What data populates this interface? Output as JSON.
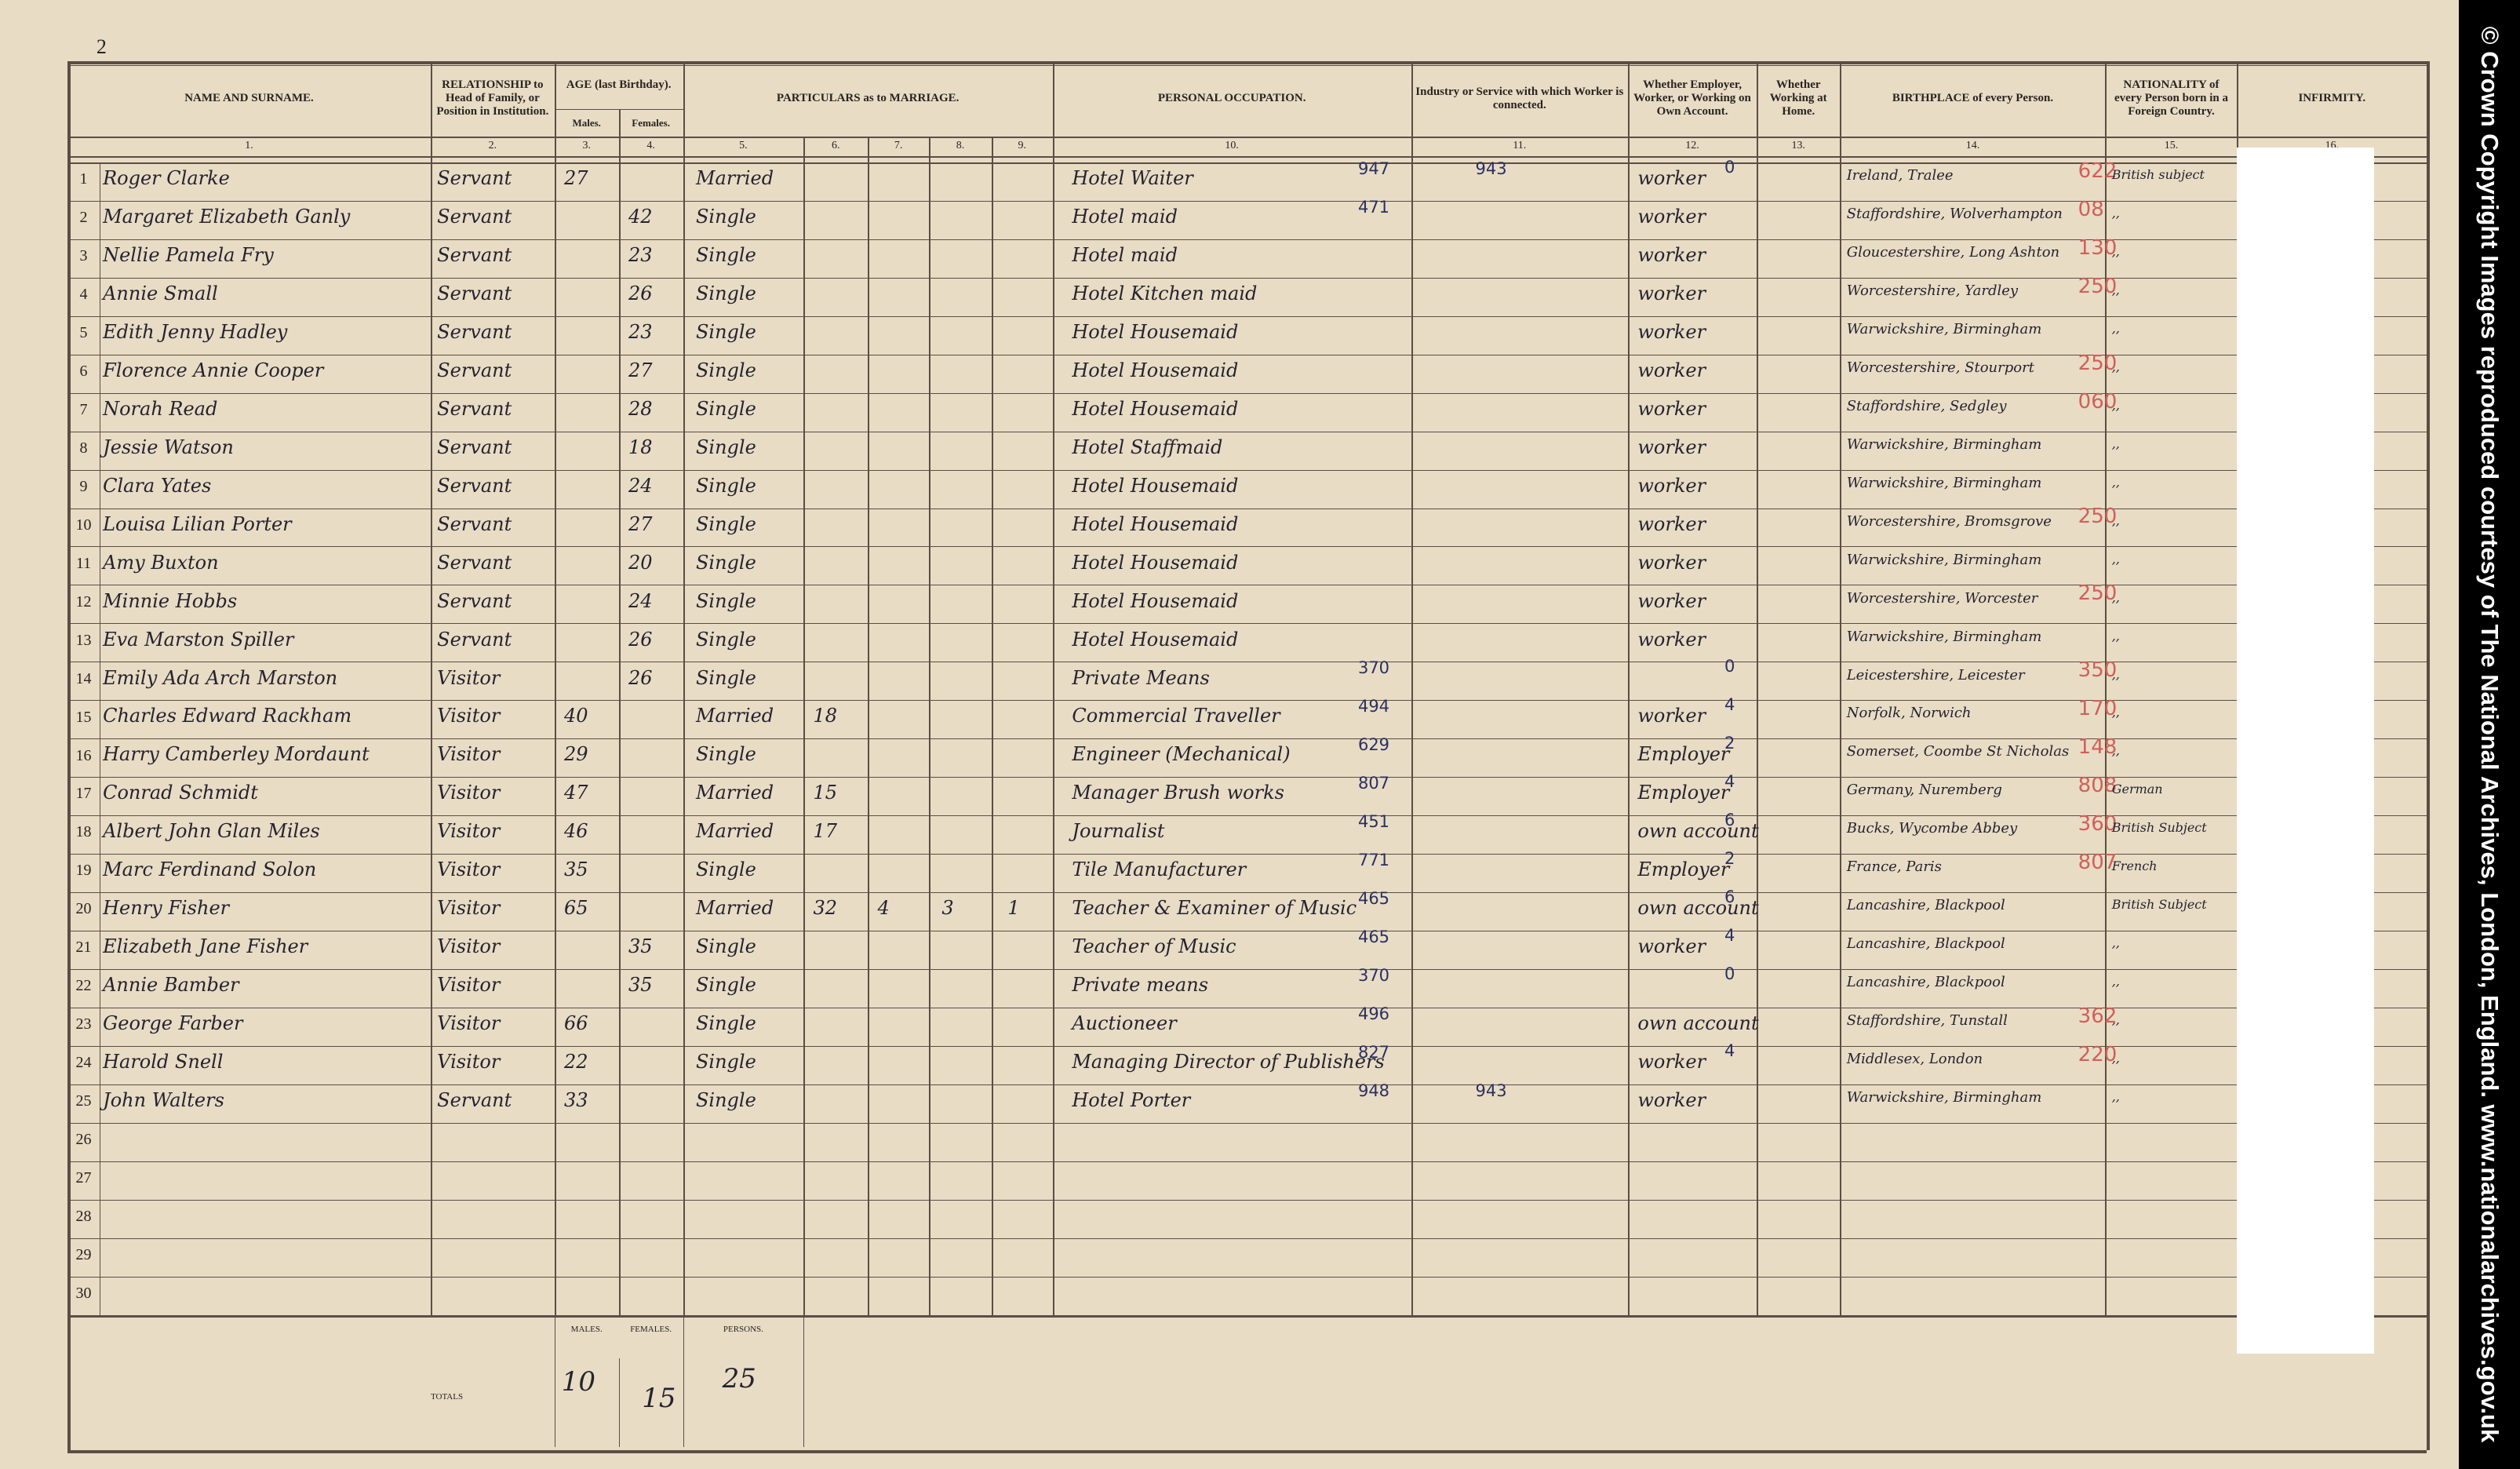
{
  "page_number": "2",
  "header": {
    "name": "NAME AND SURNAME.",
    "relationship": "RELATIONSHIP to Head of Family, or Position in Institution.",
    "age": "AGE (last Birthday).",
    "males": "Males.",
    "females": "Females.",
    "marriage": "PARTICULARS as to MARRIAGE.",
    "occupation": "PERSONAL OCCUPATION.",
    "industry": "Industry or Service with which Worker is connected.",
    "employment": "Whether Employer, Worker, or Working on Own Account.",
    "at_home": "Whether Working at Home.",
    "birthplace": "BIRTHPLACE of every Person.",
    "nationality": "NATIONALITY of every Person born in a Foreign Country.",
    "infirmity": "INFIRMITY."
  },
  "column_numbers": [
    "1.",
    "2.",
    "3.",
    "4.",
    "5.",
    "6.",
    "7.",
    "8.",
    "9.",
    "10.",
    "11.",
    "12.",
    "13.",
    "14.",
    "15.",
    "16."
  ],
  "rows": [
    {
      "number": "1",
      "name": "Roger Clarke",
      "relationship": "Servant",
      "males": "27",
      "marriage": "Married",
      "occupation": "Hotel Waiter",
      "occupation_code": "947",
      "industry": "943",
      "employment": "worker",
      "employment_code": "0",
      "birthplace": "Ireland, Tralee",
      "birthplace_code": "622",
      "nationality": "British subject"
    },
    {
      "number": "2",
      "name": "Margaret Elizabeth Ganly",
      "relationship": "Servant",
      "females": "42",
      "marriage": "Single",
      "occupation": "Hotel maid",
      "occupation_code": "471",
      "employment": "worker",
      "birthplace": "Staffordshire, Wolverhampton",
      "birthplace_code": "08",
      "nationality": ",,"
    },
    {
      "number": "3",
      "name": "Nellie Pamela Fry",
      "relationship": "Servant",
      "females": "23",
      "marriage": "Single",
      "occupation": "Hotel maid",
      "employment": "worker",
      "birthplace": "Gloucestershire, Long Ashton",
      "birthplace_code": "130",
      "nationality": ",,"
    },
    {
      "number": "4",
      "name": "Annie Small",
      "relationship": "Servant",
      "females": "26",
      "marriage": "Single",
      "occupation": "Hotel Kitchen maid",
      "employment": "worker",
      "birthplace": "Worcestershire, Yardley",
      "birthplace_code": "250",
      "nationality": ",,"
    },
    {
      "number": "5",
      "name": "Edith Jenny Hadley",
      "relationship": "Servant",
      "females": "23",
      "marriage": "Single",
      "occupation": "Hotel Housemaid",
      "employment": "worker",
      "birthplace": "Warwickshire, Birmingham",
      "nationality": ",,"
    },
    {
      "number": "6",
      "name": "Florence Annie Cooper",
      "relationship": "Servant",
      "females": "27",
      "marriage": "Single",
      "occupation": "Hotel Housemaid",
      "employment": "worker",
      "birthplace": "Worcestershire, Stourport",
      "birthplace_code": "250",
      "nationality": ",,"
    },
    {
      "number": "7",
      "name": "Norah Read",
      "relationship": "Servant",
      "females": "28",
      "marriage": "Single",
      "occupation": "Hotel Housemaid",
      "employment": "worker",
      "birthplace": "Staffordshire, Sedgley",
      "birthplace_code": "060",
      "nationality": ",,"
    },
    {
      "number": "8",
      "name": "Jessie Watson",
      "relationship": "Servant",
      "females": "18",
      "marriage": "Single",
      "occupation": "Hotel Staffmaid",
      "employment": "worker",
      "birthplace": "Warwickshire, Birmingham",
      "nationality": ",,"
    },
    {
      "number": "9",
      "name": "Clara Yates",
      "relationship": "Servant",
      "females": "24",
      "marriage": "Single",
      "occupation": "Hotel Housemaid",
      "employment": "worker",
      "birthplace": "Warwickshire, Birmingham",
      "nationality": ",,"
    },
    {
      "number": "10",
      "name": "Louisa Lilian Porter",
      "relationship": "Servant",
      "females": "27",
      "marriage": "Single",
      "occupation": "Hotel Housemaid",
      "employment": "worker",
      "birthplace": "Worcestershire, Bromsgrove",
      "birthplace_code": "250",
      "nationality": ",,"
    },
    {
      "number": "11",
      "name": "Amy Buxton",
      "relationship": "Servant",
      "females": "20",
      "marriage": "Single",
      "occupation": "Hotel Housemaid",
      "employment": "worker",
      "birthplace": "Warwickshire, Birmingham",
      "nationality": ",,"
    },
    {
      "number": "12",
      "name": "Minnie Hobbs",
      "relationship": "Servant",
      "females": "24",
      "marriage": "Single",
      "occupation": "Hotel Housemaid",
      "employment": "worker",
      "birthplace": "Worcestershire, Worcester",
      "birthplace_code": "250",
      "nationality": ",,"
    },
    {
      "number": "13",
      "name": "Eva Marston Spiller",
      "relationship": "Servant",
      "females": "26",
      "marriage": "Single",
      "occupation": "Hotel Housemaid",
      "employment": "worker",
      "birthplace": "Warwickshire, Birmingham",
      "nationality": ",,"
    },
    {
      "number": "14",
      "name": "Emily Ada Arch Marston",
      "relationship": "Visitor",
      "females": "26",
      "marriage": "Single",
      "occupation": "Private Means",
      "occupation_code": "370",
      "employment_code": "0",
      "birthplace": "Leicestershire, Leicester",
      "birthplace_code": "350",
      "nationality": ",,"
    },
    {
      "number": "15",
      "name": "Charles Edward Rackham",
      "relationship": "Visitor",
      "males": "40",
      "marriage": "Married",
      "years": "18",
      "occupation": "Commercial Traveller",
      "occupation_code": "494",
      "employment": "worker",
      "employment_code": "4",
      "birthplace": "Norfolk, Norwich",
      "birthplace_code": "170",
      "nationality": ",,"
    },
    {
      "number": "16",
      "name": "Harry Camberley Mordaunt",
      "relationship": "Visitor",
      "males": "29",
      "marriage": "Single",
      "occupation": "Engineer (Mechanical)",
      "occupation_code": "629",
      "employment": "Employer",
      "employment_code": "2",
      "birthplace": "Somerset, Coombe St Nicholas",
      "birthplace_code": "148",
      "nationality": ",,"
    },
    {
      "number": "17",
      "name": "Conrad Schmidt",
      "relationship": "Visitor",
      "males": "47",
      "marriage": "Married",
      "years": "15",
      "occupation": "Manager Brush works",
      "occupation_code": "807",
      "employment": "Employer",
      "employment_code": "4",
      "birthplace": "Germany, Nuremberg",
      "birthplace_code": "808",
      "nationality": "German"
    },
    {
      "number": "18",
      "name": "Albert John Glan Miles",
      "relationship": "Visitor",
      "males": "46",
      "marriage": "Married",
      "years": "17",
      "occupation": "Journalist",
      "occupation_code": "451",
      "employment": "own account",
      "employment_code": "6",
      "birthplace": "Bucks, Wycombe Abbey",
      "birthplace_code": "360",
      "nationality": "British Subject"
    },
    {
      "number": "19",
      "name": "Marc Ferdinand Solon",
      "relationship": "Visitor",
      "males": "35",
      "marriage": "Single",
      "occupation": "Tile Manufacturer",
      "occupation_code": "771",
      "employment": "Employer",
      "employment_code": "2",
      "birthplace": "France, Paris",
      "birthplace_code": "807",
      "nationality": "French"
    },
    {
      "number": "20",
      "name": "Henry Fisher",
      "relationship": "Visitor",
      "males": "65",
      "marriage": "Married",
      "years": "32",
      "born_alive": "4",
      "living": "3",
      "died": "1",
      "occupation": "Teacher & Examiner of Music",
      "occupation_code": "465",
      "employment": "own account",
      "employment_code": "6",
      "birthplace": "Lancashire, Blackpool",
      "nationality": "British Subject"
    },
    {
      "number": "21",
      "name": "Elizabeth Jane Fisher",
      "relationship": "Visitor",
      "females": "35",
      "marriage": "Single",
      "occupation": "Teacher of Music",
      "occupation_code": "465",
      "employment": "worker",
      "employment_code": "4",
      "birthplace": "Lancashire, Blackpool",
      "nationality": ",,"
    },
    {
      "number": "22",
      "name": "Annie Bamber",
      "relationship": "Visitor",
      "females": "35",
      "marriage": "Single",
      "occupation": "Private means",
      "occupation_code": "370",
      "employment_code": "0",
      "birthplace": "Lancashire, Blackpool",
      "nationality": ",,"
    },
    {
      "number": "23",
      "name": "George Farber",
      "relationship": "Visitor",
      "males": "66",
      "marriage": "Single",
      "occupation": "Auctioneer",
      "occupation_code": "496",
      "employment": "own account",
      "birthplace": "Staffordshire, Tunstall",
      "birthplace_code": "362",
      "nationality": ",,"
    },
    {
      "number": "24",
      "name": "Harold Snell",
      "relationship": "Visitor",
      "males": "22",
      "marriage": "Single",
      "occupation": "Managing Director of Publishers",
      "occupation_code": "827",
      "employment": "worker",
      "employment_code": "4",
      "birthplace": "Middlesex, London",
      "birthplace_code": "220",
      "nationality": ",,"
    },
    {
      "number": "25",
      "name": "John Walters",
      "relationship": "Servant",
      "males": "33",
      "marriage": "Single",
      "occupation": "Hotel Porter",
      "occupation_code": "948",
      "industry": "943",
      "employment": "worker",
      "birthplace": "Warwickshire, Birmingham",
      "nationality": ",,"
    },
    {
      "number": "26"
    },
    {
      "number": "27"
    },
    {
      "number": "28"
    },
    {
      "number": "29"
    },
    {
      "number": "30"
    }
  ],
  "totals": {
    "label": "TOTALS",
    "males_heading": "MALES.",
    "females_heading": "FEMALES.",
    "persons_heading": "PERSONS.",
    "males": "10",
    "females": "15",
    "persons": "25"
  },
  "copyright": "© Crown Copyright Images reproduced courtesy of The National Archives, London, England. www.nationalarchives.gov.uk"
}
